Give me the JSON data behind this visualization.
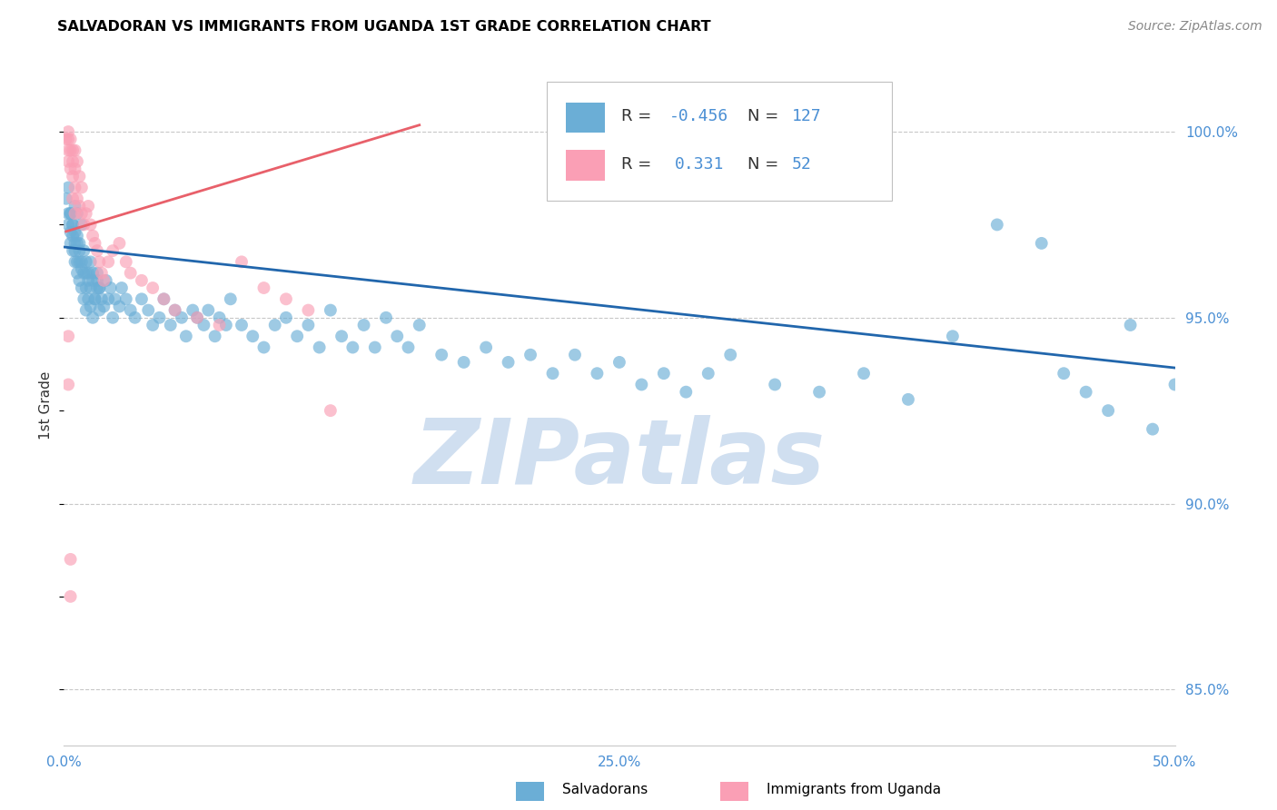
{
  "title": "SALVADORAN VS IMMIGRANTS FROM UGANDA 1ST GRADE CORRELATION CHART",
  "source_text": "Source: ZipAtlas.com",
  "ylabel": "1st Grade",
  "y_ticks": [
    85.0,
    90.0,
    95.0,
    100.0
  ],
  "y_tick_labels": [
    "85.0%",
    "90.0%",
    "95.0%",
    "100.0%"
  ],
  "xlim": [
    0.0,
    0.5
  ],
  "ylim": [
    83.5,
    101.8
  ],
  "legend_r_blue": "-0.456",
  "legend_n_blue": "127",
  "legend_r_pink": "0.331",
  "legend_n_pink": "52",
  "blue_color": "#6baed6",
  "pink_color": "#fa9fb5",
  "blue_line_color": "#2166ac",
  "pink_line_color": "#e8606a",
  "watermark_color": "#d0dff0",
  "blue_intercept": 96.9,
  "blue_slope": -6.5,
  "pink_intercept": 97.3,
  "pink_slope": 18.0,
  "blue_scatter_x": [
    0.001,
    0.002,
    0.002,
    0.003,
    0.003,
    0.003,
    0.004,
    0.004,
    0.004,
    0.005,
    0.005,
    0.005,
    0.005,
    0.006,
    0.006,
    0.006,
    0.006,
    0.007,
    0.007,
    0.007,
    0.008,
    0.008,
    0.008,
    0.009,
    0.009,
    0.01,
    0.01,
    0.01,
    0.011,
    0.011,
    0.012,
    0.012,
    0.013,
    0.013,
    0.014,
    0.015,
    0.015,
    0.016,
    0.016,
    0.017,
    0.018,
    0.019,
    0.02,
    0.021,
    0.022,
    0.023,
    0.025,
    0.026,
    0.028,
    0.03,
    0.032,
    0.035,
    0.038,
    0.04,
    0.043,
    0.045,
    0.048,
    0.05,
    0.053,
    0.055,
    0.058,
    0.06,
    0.063,
    0.065,
    0.068,
    0.07,
    0.073,
    0.075,
    0.08,
    0.085,
    0.09,
    0.095,
    0.1,
    0.105,
    0.11,
    0.115,
    0.12,
    0.125,
    0.13,
    0.135,
    0.14,
    0.145,
    0.15,
    0.155,
    0.16,
    0.17,
    0.18,
    0.19,
    0.2,
    0.21,
    0.22,
    0.23,
    0.24,
    0.25,
    0.26,
    0.27,
    0.28,
    0.29,
    0.3,
    0.32,
    0.34,
    0.36,
    0.38,
    0.4,
    0.42,
    0.44,
    0.45,
    0.46,
    0.47,
    0.48,
    0.49,
    0.5,
    0.002,
    0.003,
    0.004,
    0.005,
    0.006,
    0.007,
    0.008,
    0.009,
    0.01,
    0.011,
    0.012,
    0.013,
    0.014,
    0.015,
    0.016
  ],
  "blue_scatter_y": [
    98.2,
    97.8,
    97.5,
    97.3,
    97.0,
    97.8,
    96.8,
    97.5,
    97.2,
    96.5,
    97.0,
    96.8,
    97.3,
    96.2,
    97.0,
    96.5,
    97.8,
    96.0,
    96.5,
    96.8,
    96.3,
    95.8,
    96.5,
    95.5,
    96.2,
    95.2,
    95.8,
    96.2,
    95.5,
    96.0,
    95.3,
    96.5,
    95.0,
    96.2,
    95.5,
    95.8,
    96.0,
    95.2,
    95.8,
    95.5,
    95.3,
    96.0,
    95.5,
    95.8,
    95.0,
    95.5,
    95.3,
    95.8,
    95.5,
    95.2,
    95.0,
    95.5,
    95.2,
    94.8,
    95.0,
    95.5,
    94.8,
    95.2,
    95.0,
    94.5,
    95.2,
    95.0,
    94.8,
    95.2,
    94.5,
    95.0,
    94.8,
    95.5,
    94.8,
    94.5,
    94.2,
    94.8,
    95.0,
    94.5,
    94.8,
    94.2,
    95.2,
    94.5,
    94.2,
    94.8,
    94.2,
    95.0,
    94.5,
    94.2,
    94.8,
    94.0,
    93.8,
    94.2,
    93.8,
    94.0,
    93.5,
    94.0,
    93.5,
    93.8,
    93.2,
    93.5,
    93.0,
    93.5,
    94.0,
    93.2,
    93.0,
    93.5,
    92.8,
    94.5,
    97.5,
    97.0,
    93.5,
    93.0,
    92.5,
    94.8,
    92.0,
    93.2,
    98.5,
    97.8,
    97.5,
    98.0,
    97.2,
    97.0,
    97.5,
    96.8,
    96.5,
    96.2,
    95.8,
    96.0,
    95.5,
    96.2,
    95.8
  ],
  "pink_scatter_x": [
    0.001,
    0.002,
    0.002,
    0.002,
    0.002,
    0.003,
    0.003,
    0.003,
    0.004,
    0.004,
    0.004,
    0.005,
    0.005,
    0.005,
    0.006,
    0.006,
    0.007,
    0.007,
    0.008,
    0.008,
    0.009,
    0.01,
    0.011,
    0.012,
    0.013,
    0.014,
    0.015,
    0.016,
    0.017,
    0.018,
    0.02,
    0.022,
    0.025,
    0.028,
    0.03,
    0.035,
    0.04,
    0.045,
    0.05,
    0.06,
    0.07,
    0.08,
    0.09,
    0.1,
    0.11,
    0.12,
    0.002,
    0.002,
    0.003,
    0.003,
    0.004,
    0.005
  ],
  "pink_scatter_y": [
    99.8,
    99.5,
    99.8,
    99.2,
    100.0,
    99.5,
    99.0,
    99.8,
    99.2,
    98.8,
    99.5,
    98.5,
    99.0,
    99.5,
    98.2,
    99.2,
    98.0,
    98.8,
    97.8,
    98.5,
    97.5,
    97.8,
    98.0,
    97.5,
    97.2,
    97.0,
    96.8,
    96.5,
    96.2,
    96.0,
    96.5,
    96.8,
    97.0,
    96.5,
    96.2,
    96.0,
    95.8,
    95.5,
    95.2,
    95.0,
    94.8,
    96.5,
    95.8,
    95.5,
    95.2,
    92.5,
    94.5,
    93.2,
    87.5,
    88.5,
    98.2,
    97.8
  ]
}
